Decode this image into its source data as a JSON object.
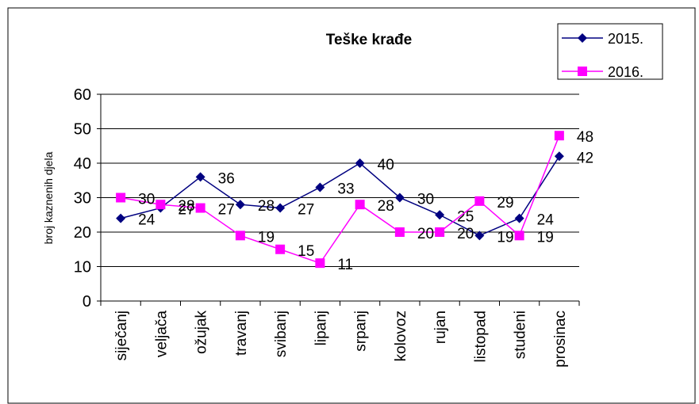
{
  "chart_data": {
    "type": "line",
    "title": "Teške krađe",
    "y_label": "broj kaznenih djela",
    "categories": [
      "siječanj",
      "veljača",
      "ožujak",
      "travanj",
      "svibanj",
      "lipanj",
      "srpanj",
      "kolovoz",
      "rujan",
      "listopad",
      "studeni",
      "prosinac"
    ],
    "series": [
      {
        "name": "2015.",
        "color": "#000080",
        "marker": "diamond",
        "values": [
          24,
          27,
          36,
          28,
          27,
          33,
          40,
          30,
          25,
          19,
          24,
          42
        ]
      },
      {
        "name": "2016.",
        "color": "#ff00ff",
        "marker": "square",
        "values": [
          30,
          28,
          27,
          19,
          15,
          11,
          28,
          20,
          20,
          29,
          19,
          48
        ]
      }
    ],
    "ylim": [
      0,
      60
    ],
    "yticks": [
      0,
      10,
      20,
      30,
      40,
      50,
      60
    ],
    "grid": true,
    "legend": "top-right"
  }
}
